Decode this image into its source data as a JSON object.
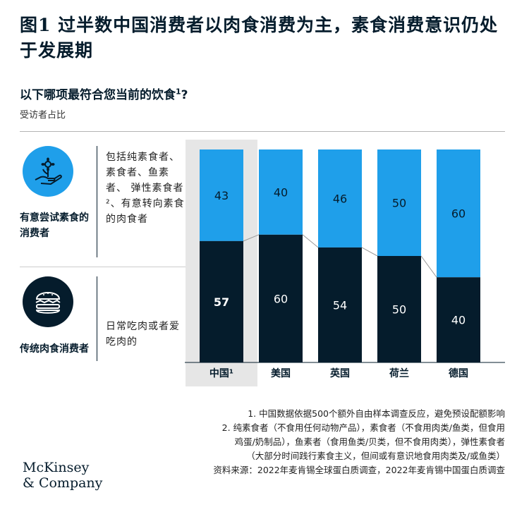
{
  "title": "图1 过半数中国消费者以肉食消费为主，素食消费意识仍处于发展期",
  "subtitle": "以下哪项最符合您当前的饮食",
  "subtitle_sup": "1",
  "subtitle_q": "?",
  "unit": "受访者占比",
  "segments": {
    "top": {
      "title": "有意尝试素食的消费者",
      "desc": "包括纯素食者、素食者、鱼素者、 弹性素食者²、有意转向素食的肉食者",
      "icon": "flower-in-hand-icon"
    },
    "bottom": {
      "title": "传统肉食消费者",
      "desc": "日常吃肉或者爱吃肉的",
      "icon": "burger-icon"
    }
  },
  "colors": {
    "light": "#1f9fea",
    "dark": "#051c2c",
    "highlight": "#e6e6e6"
  },
  "chart_data": {
    "type": "bar",
    "stacked": true,
    "categories": [
      "中国¹",
      "美国",
      "英国",
      "荷兰",
      "德国"
    ],
    "series": [
      {
        "values": [
          57,
          60,
          54,
          50,
          40
        ]
      },
      {
        "values": [
          43,
          40,
          46,
          50,
          60
        ]
      }
    ],
    "ylim": [
      0,
      100
    ],
    "highlight_category": "中国¹"
  },
  "notes": [
    "1. 中国数据依据500个额外自由样本调查反应，避免预设配额影响",
    "2. 纯素食者（不食用任何动物产品），素食者（不食用肉类/鱼类，但食用",
    "鸡蛋/奶制品），鱼素者（食用鱼类/贝类，但不食用肉类），弹性素食者",
    "（大部分时间践行素食主义，但间或有意识地食用肉类及/或鱼类）",
    "资料来源：2022年麦肯锡全球蛋白质调查，2022年麦肯锡中国蛋白质调查"
  ],
  "logo": [
    "McKinsey",
    "& Company"
  ]
}
